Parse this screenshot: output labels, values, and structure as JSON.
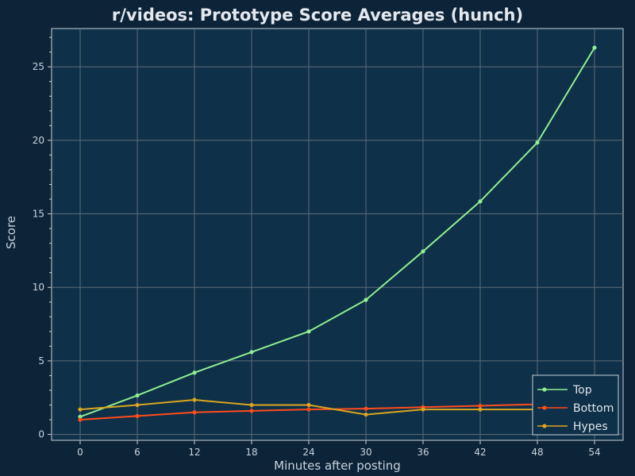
{
  "chart_data": {
    "type": "line",
    "title": "r/videos: Prototype Score Averages (hunch)",
    "xlabel": "Minutes after posting",
    "ylabel": "Score",
    "x": [
      0,
      6,
      12,
      18,
      24,
      30,
      36,
      42,
      48,
      54
    ],
    "xlim": [
      -3,
      57
    ],
    "ylim": [
      -0.4,
      27.6
    ],
    "xticks": [
      0,
      6,
      12,
      18,
      24,
      30,
      36,
      42,
      48,
      54
    ],
    "yticks": [
      0,
      5,
      10,
      15,
      20,
      25
    ],
    "grid": true,
    "legend_position": "bottom-right",
    "series": [
      {
        "name": "Top",
        "color": "#90ee90",
        "values": [
          1.2,
          2.65,
          4.2,
          5.6,
          7.0,
          9.15,
          12.45,
          15.85,
          19.85,
          26.3
        ]
      },
      {
        "name": "Bottom",
        "color": "#ff4c1c",
        "values": [
          1.0,
          1.25,
          1.5,
          1.6,
          1.7,
          1.75,
          1.85,
          1.95,
          2.05,
          2.2
        ]
      },
      {
        "name": "Hypes",
        "color": "#daa520",
        "values": [
          1.7,
          2.0,
          2.35,
          2.0,
          2.0,
          1.35,
          1.7,
          1.7,
          1.7,
          1.75
        ]
      }
    ]
  }
}
